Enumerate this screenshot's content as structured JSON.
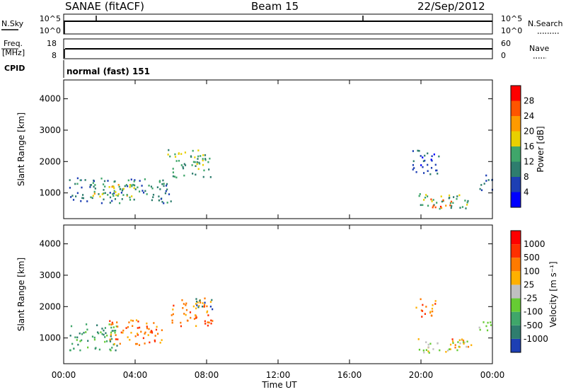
{
  "header": {
    "station": "SANAE (fitACF)",
    "beam": "Beam 15",
    "date": "22/Sep/2012"
  },
  "chart_data": [
    {
      "type": "line",
      "panel": "noise",
      "left_label": "N.Sky",
      "right_label": "N.Search",
      "left_ticks": [
        "10^5",
        "10^0"
      ],
      "right_ticks": [
        "10^5",
        "10^0"
      ],
      "series": [
        {
          "name": "N.Sky",
          "x": [
            0,
            24
          ],
          "values": [
            5,
            5
          ],
          "spikes_at_hours": [
            1.8,
            16.8
          ]
        }
      ]
    },
    {
      "type": "line",
      "panel": "frequency",
      "left_label": "Freq. [MHz]",
      "right_label": "Nave",
      "left_ticks": [
        "18",
        "8"
      ],
      "right_ticks": [
        "60",
        "0"
      ],
      "ylim_left": [
        8,
        18
      ],
      "ylim_right": [
        0,
        60
      ],
      "series": [
        {
          "name": "Freq",
          "x": [
            0,
            24
          ],
          "values": [
            12,
            12
          ]
        }
      ]
    },
    {
      "type": "text",
      "panel": "cpid",
      "label": "CPID",
      "value": "normal (fast) 151"
    },
    {
      "type": "heatmap",
      "panel": "power",
      "ylabel": "Slant Range [km]",
      "yticks": [
        "4000",
        "3000",
        "2000",
        "1000"
      ],
      "ytick_values": [
        4000,
        3000,
        2000,
        1000
      ],
      "ylim": [
        180,
        4600
      ],
      "xlim": [
        0,
        24
      ],
      "colorbar": {
        "label": "Power [dB]",
        "ticks": [
          "28",
          "24",
          "20",
          "16",
          "12",
          "8",
          "4"
        ],
        "colors": [
          "#0000ff",
          "#1d3fb4",
          "#2e7d6e",
          "#3fa66a",
          "#e8d000",
          "#ff9a00",
          "#ff5500",
          "#ff0000"
        ]
      },
      "blobs": [
        {
          "t0": 0.3,
          "t1": 6.0,
          "r0": 700,
          "r1": 1500,
          "level": 2
        },
        {
          "t0": 1.5,
          "t1": 4.0,
          "r0": 900,
          "r1": 1300,
          "level": 4
        },
        {
          "t0": 5.8,
          "t1": 8.2,
          "r0": 1500,
          "r1": 2400,
          "level": 3
        },
        {
          "t0": 19.8,
          "t1": 22.6,
          "r0": 500,
          "r1": 1000,
          "level": 3
        },
        {
          "t0": 20.5,
          "t1": 21.8,
          "r0": 550,
          "r1": 850,
          "level": 6
        },
        {
          "t0": 19.5,
          "t1": 21.0,
          "r0": 1600,
          "r1": 2400,
          "level": 1
        },
        {
          "t0": 23.2,
          "t1": 24.0,
          "r0": 1100,
          "r1": 1600,
          "level": 2
        }
      ]
    },
    {
      "type": "heatmap",
      "panel": "velocity",
      "ylabel": "Slant Range [km]",
      "yticks": [
        "4000",
        "3000",
        "2000",
        "1000"
      ],
      "ytick_values": [
        4000,
        3000,
        2000,
        1000
      ],
      "ylim": [
        180,
        4600
      ],
      "xlim": [
        0,
        24
      ],
      "colorbar": {
        "label": "Velocity [m s⁻¹]",
        "ticks": [
          "1000",
          "500",
          "100",
          "25",
          "-25",
          "-100",
          "-500",
          "-1000"
        ],
        "colors": [
          "#1d3fb4",
          "#2e7d6e",
          "#3fa66a",
          "#66cc33",
          "#c0c0c0",
          "#ffb000",
          "#ff7a00",
          "#ff3000",
          "#ff0000"
        ]
      },
      "blobs": [
        {
          "t0": 0.3,
          "t1": 3.0,
          "r0": 600,
          "r1": 1500,
          "level": 2
        },
        {
          "t0": 2.5,
          "t1": 5.5,
          "r0": 800,
          "r1": 1600,
          "level": 6
        },
        {
          "t0": 6.0,
          "t1": 8.3,
          "r0": 1400,
          "r1": 2300,
          "level": 6
        },
        {
          "t0": 7.3,
          "t1": 8.3,
          "r0": 1900,
          "r1": 2300,
          "level": 0
        },
        {
          "t0": 19.8,
          "t1": 22.6,
          "r0": 550,
          "r1": 1000,
          "level": 4
        },
        {
          "t0": 21.5,
          "t1": 22.8,
          "r0": 700,
          "r1": 1000,
          "level": 6
        },
        {
          "t0": 19.7,
          "t1": 20.8,
          "r0": 1700,
          "r1": 2300,
          "level": 6
        },
        {
          "t0": 23.2,
          "t1": 24.0,
          "r0": 1200,
          "r1": 1600,
          "level": 3
        }
      ]
    }
  ],
  "x_axis": {
    "ticks": [
      "00:00",
      "04:00",
      "08:00",
      "12:00",
      "16:00",
      "20:00",
      "00:00"
    ],
    "tick_hours": [
      0,
      4,
      8,
      12,
      16,
      20,
      24
    ],
    "label": "Time UT"
  }
}
